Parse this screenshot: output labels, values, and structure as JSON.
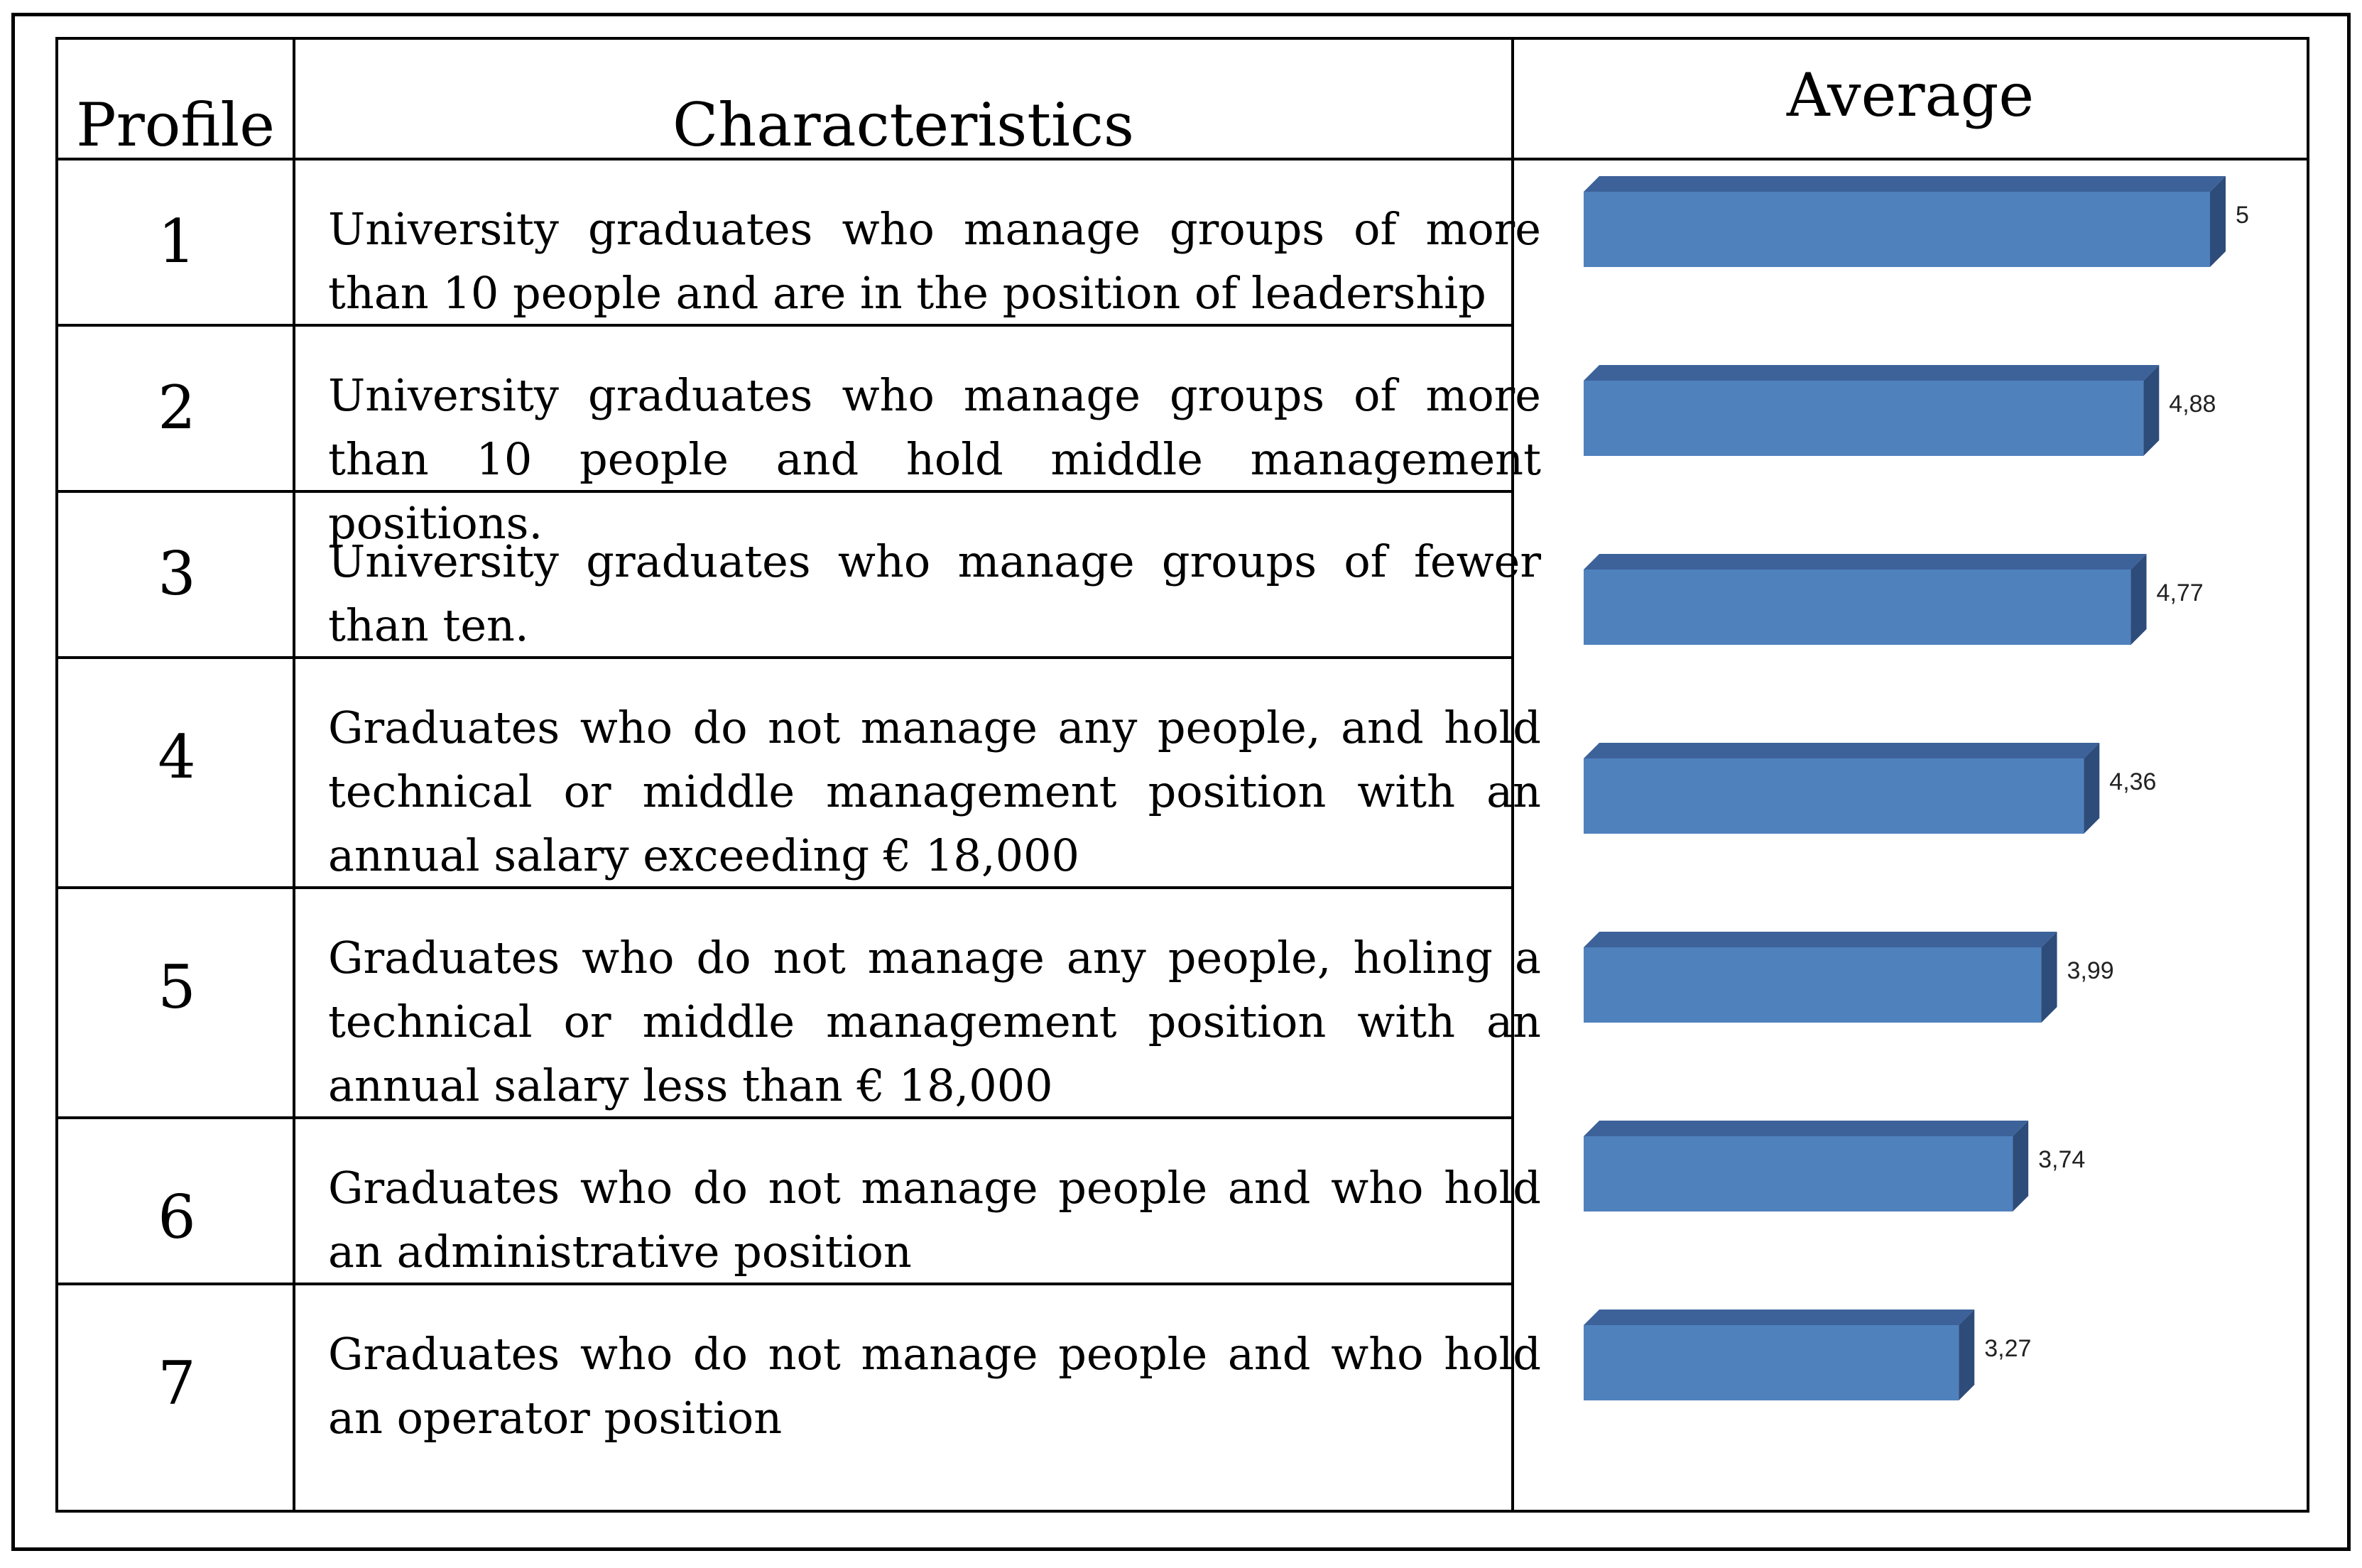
{
  "table": {
    "headers": {
      "profile": "Profile",
      "characteristics": "Characteristics",
      "average": "Average"
    },
    "rows": [
      {
        "profile": "1",
        "characteristics": "University graduates who manage groups of more than 10 people and are in the position of leadership"
      },
      {
        "profile": "2",
        "characteristics": "University graduates who manage groups of more than 10 people and hold middle management positions."
      },
      {
        "profile": "3",
        "characteristics": "University graduates who manage groups of fewer than ten."
      },
      {
        "profile": "4",
        "characteristics": "Graduates who do not manage any people, and hold technical or middle management position with an annual salary exceeding € 18,000"
      },
      {
        "profile": "5",
        "characteristics": "Graduates who do not manage any people, holing a technical or middle management position with an annual salary less than € 18,000"
      },
      {
        "profile": "6",
        "characteristics": "Graduates who do not manage people and who hold an administrative position"
      },
      {
        "profile": "7",
        "characteristics": "Graduates who do not manage people and who hold an operator position"
      }
    ]
  },
  "chart_data": {
    "type": "bar",
    "orientation": "horizontal",
    "categories": [
      "1",
      "2",
      "3",
      "4",
      "5",
      "6",
      "7"
    ],
    "values": [
      5.46,
      4.88,
      4.77,
      4.36,
      3.99,
      3.74,
      3.27
    ],
    "data_labels": [
      "5,46",
      "4,88",
      "4,77",
      "4,36",
      "3,99",
      "3,74",
      "3,27"
    ],
    "bar_style": "3d",
    "xlim": [
      0,
      5.46
    ],
    "grid": false,
    "legend": "none",
    "colors": {
      "bar_front": "#4F81BD",
      "bar_top": "#3D629A",
      "bar_side": "#2E4C7A"
    }
  }
}
